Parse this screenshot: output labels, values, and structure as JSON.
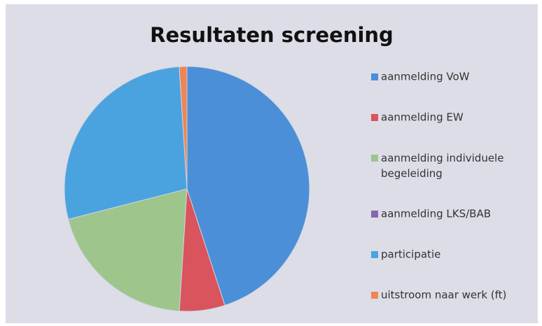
{
  "chart_data": {
    "type": "pie",
    "title": "Resultaten screening",
    "categories": [
      "aanmelding VoW",
      "aanmelding EW",
      "aanmelding individuele begeleiding",
      "aanmelding LKS/BAB",
      "participatie",
      "uitstroom naar werk (ft)"
    ],
    "values": [
      45,
      6,
      20,
      0,
      28,
      1
    ],
    "colors": [
      "#4b8fd8",
      "#d9545c",
      "#9dc58c",
      "#8468a8",
      "#4aa3df",
      "#ef8555"
    ],
    "legend": "right"
  }
}
